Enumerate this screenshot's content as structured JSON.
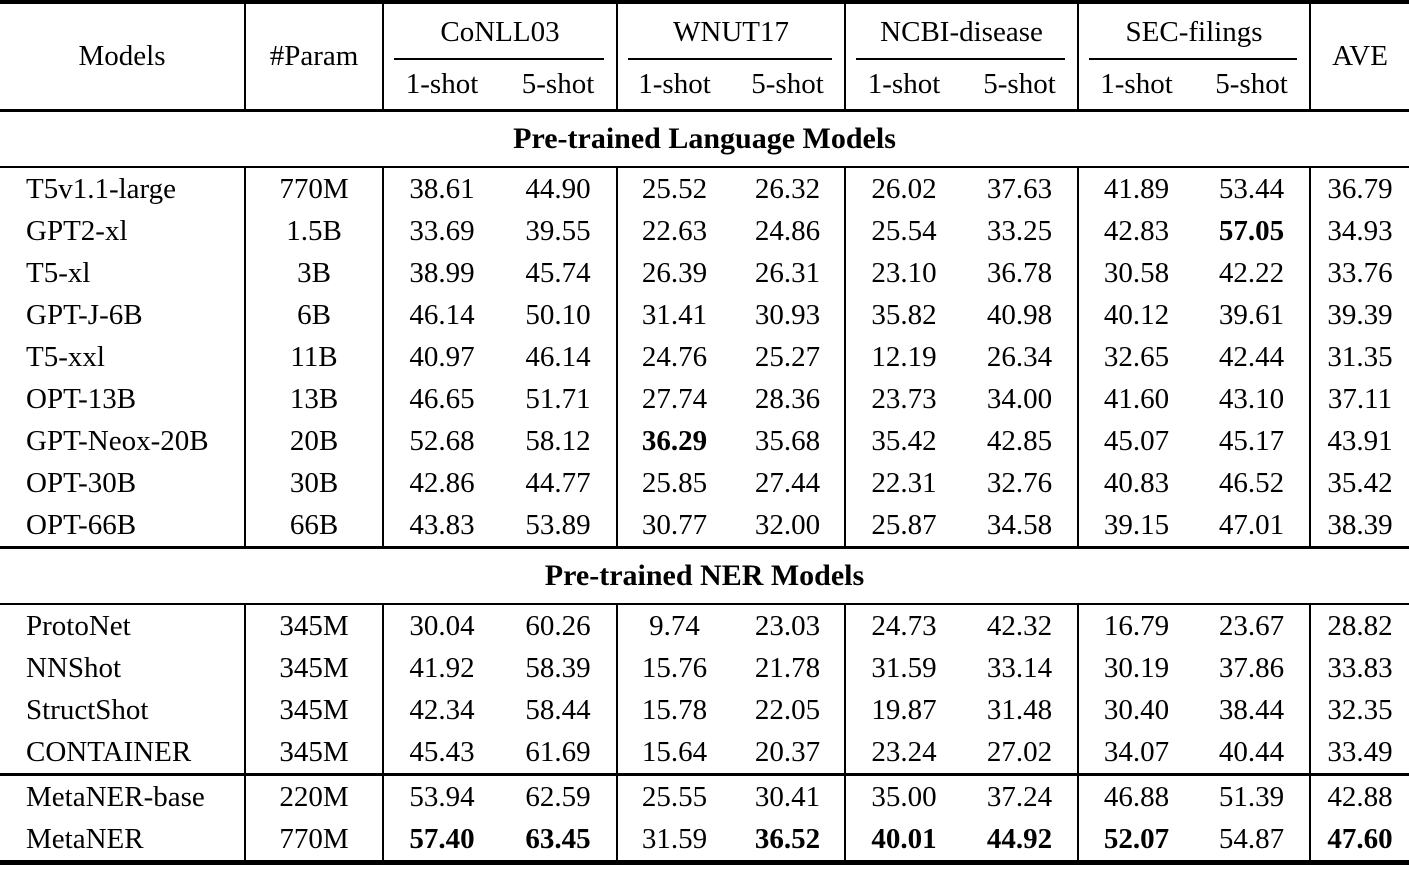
{
  "colors": {
    "text": "#000000",
    "background": "#ffffff",
    "rule": "#000000"
  },
  "table": {
    "header": {
      "models": "Models",
      "param": "#Param",
      "ave": "AVE",
      "groups": [
        {
          "label": "CoNLL03",
          "subcols": [
            "1-shot",
            "5-shot"
          ]
        },
        {
          "label": "WNUT17",
          "subcols": [
            "1-shot",
            "5-shot"
          ]
        },
        {
          "label": "NCBI-disease",
          "subcols": [
            "1-shot",
            "5-shot"
          ]
        },
        {
          "label": "SEC-filings",
          "subcols": [
            "1-shot",
            "5-shot"
          ]
        }
      ]
    },
    "sections": [
      {
        "title": "Pre-trained Language Models",
        "rows": [
          {
            "model": "T5v1.1-large",
            "param": "770M",
            "values": [
              "38.61",
              "44.90",
              "25.52",
              "26.32",
              "26.02",
              "37.63",
              "41.89",
              "53.44",
              "36.79"
            ],
            "bold": []
          },
          {
            "model": "GPT2-xl",
            "param": "1.5B",
            "values": [
              "33.69",
              "39.55",
              "22.63",
              "24.86",
              "25.54",
              "33.25",
              "42.83",
              "57.05",
              "34.93"
            ],
            "bold": [
              9
            ]
          },
          {
            "model": "T5-xl",
            "param": "3B",
            "values": [
              "38.99",
              "45.74",
              "26.39",
              "26.31",
              "23.10",
              "36.78",
              "30.58",
              "42.22",
              "33.76"
            ],
            "bold": []
          },
          {
            "model": "GPT-J-6B",
            "param": "6B",
            "values": [
              "46.14",
              "50.10",
              "31.41",
              "30.93",
              "35.82",
              "40.98",
              "40.12",
              "39.61",
              "39.39"
            ],
            "bold": []
          },
          {
            "model": "T5-xxl",
            "param": "11B",
            "values": [
              "40.97",
              "46.14",
              "24.76",
              "25.27",
              "12.19",
              "26.34",
              "32.65",
              "42.44",
              "31.35"
            ],
            "bold": []
          },
          {
            "model": "OPT-13B",
            "param": "13B",
            "values": [
              "46.65",
              "51.71",
              "27.74",
              "28.36",
              "23.73",
              "34.00",
              "41.60",
              "43.10",
              "37.11"
            ],
            "bold": []
          },
          {
            "model": "GPT-Neox-20B",
            "param": "20B",
            "values": [
              "52.68",
              "58.12",
              "36.29",
              "35.68",
              "35.42",
              "42.85",
              "45.07",
              "45.17",
              "43.91"
            ],
            "bold": [
              4
            ]
          },
          {
            "model": "OPT-30B",
            "param": "30B",
            "values": [
              "42.86",
              "44.77",
              "25.85",
              "27.44",
              "22.31",
              "32.76",
              "40.83",
              "46.52",
              "35.42"
            ],
            "bold": []
          },
          {
            "model": "OPT-66B",
            "param": "66B",
            "values": [
              "43.83",
              "53.89",
              "30.77",
              "32.00",
              "25.87",
              "34.58",
              "39.15",
              "47.01",
              "38.39"
            ],
            "bold": []
          }
        ]
      },
      {
        "title": "Pre-trained NER Models",
        "rows": [
          {
            "model": "ProtoNet",
            "param": "345M",
            "values": [
              "30.04",
              "60.26",
              "9.74",
              "23.03",
              "24.73",
              "42.32",
              "16.79",
              "23.67",
              "28.82"
            ],
            "bold": []
          },
          {
            "model": "NNShot",
            "param": "345M",
            "values": [
              "41.92",
              "58.39",
              "15.76",
              "21.78",
              "31.59",
              "33.14",
              "30.19",
              "37.86",
              "33.83"
            ],
            "bold": []
          },
          {
            "model": "StructShot",
            "param": "345M",
            "values": [
              "42.34",
              "58.44",
              "15.78",
              "22.05",
              "19.87",
              "31.48",
              "30.40",
              "38.44",
              "32.35"
            ],
            "bold": []
          },
          {
            "model": "CONTAINER",
            "param": "345M",
            "values": [
              "45.43",
              "61.69",
              "15.64",
              "20.37",
              "23.24",
              "27.02",
              "34.07",
              "40.44",
              "33.49"
            ],
            "bold": []
          }
        ]
      },
      {
        "title": null,
        "rows": [
          {
            "model": "MetaNER-base",
            "param": "220M",
            "values": [
              "53.94",
              "62.59",
              "25.55",
              "30.41",
              "35.00",
              "37.24",
              "46.88",
              "51.39",
              "42.88"
            ],
            "bold": []
          },
          {
            "model": "MetaNER",
            "param": "770M",
            "values": [
              "57.40",
              "63.45",
              "31.59",
              "36.52",
              "40.01",
              "44.92",
              "52.07",
              "54.87",
              "47.60"
            ],
            "bold": [
              2,
              3,
              5,
              6,
              7,
              8,
              10
            ]
          }
        ]
      }
    ]
  }
}
